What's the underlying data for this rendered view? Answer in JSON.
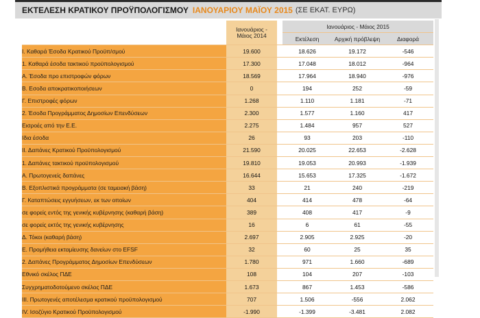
{
  "title": {
    "main": "ΕΚΤΕΛΕΣΗ ΚΡΑΤΙΚΟΥ ΠΡΟΫΠΟΛΟΓΙΣΜΟΥ",
    "period": "ΙΑΝΟΥΑΡΙΟΥ ΜΑΪΟΥ 2015",
    "unit": "(ΣΕ ΕΚΑΤ. ΕΥΡΩ)"
  },
  "headers": {
    "col_2014_line1": "Ιανουάριος -",
    "col_2014_line2": "Μάιος 2014",
    "group_2015": "Ιανουάριος - Μάιος 2015",
    "execution": "Εκτέλεση",
    "initial_forecast": "Αρχική πρόβλεψη",
    "difference": "Διαφορά"
  },
  "rows": [
    {
      "label": "Ι. Καθαρά Έσοδα Κρατικού Προϋπ/σμού",
      "v2014": "19.600",
      "exec": "18.626",
      "forecast": "19.172",
      "diff": "-546"
    },
    {
      "label": "1. Καθαρά έσοδα τακτικού προϋπολογισμού",
      "v2014": "17.300",
      "exec": "17.048",
      "forecast": "18.012",
      "diff": "-964"
    },
    {
      "label": "Α. Έσοδα προ επιστροφών φόρων",
      "v2014": "18.569",
      "exec": "17.964",
      "forecast": "18.940",
      "diff": "-976"
    },
    {
      "label": "Β. Εσοδα αποκρατικοποιήσεων",
      "v2014": "0",
      "exec": "194",
      "forecast": "252",
      "diff": "-59"
    },
    {
      "label": "Γ. Επιστροφές φόρων",
      "v2014": "1.268",
      "exec": "1.110",
      "forecast": "1.181",
      "diff": "-71"
    },
    {
      "label": "2. Έσοδα Προγράμματος Δημοσίων Επενδύσεων",
      "v2014": "2.300",
      "exec": "1.577",
      "forecast": "1.160",
      "diff": "417"
    },
    {
      "label": "Εισροές από την Ε.Ε.",
      "v2014": "2.275",
      "exec": "1.484",
      "forecast": "957",
      "diff": "527"
    },
    {
      "label": "Ιδια έσοδα",
      "v2014": "26",
      "exec": "93",
      "forecast": "203",
      "diff": "-110"
    },
    {
      "label": "ΙΙ. Δαπάνες Κρατικού Προϋπολογισμού",
      "v2014": "21.590",
      "exec": "20.025",
      "forecast": "22.653",
      "diff": "-2.628"
    },
    {
      "label": "1. Δαπάνες τακτικού προϋπολογισμού",
      "v2014": "19.810",
      "exec": "19.053",
      "forecast": "20.993",
      "diff": "-1.939"
    },
    {
      "label": "Α. Πρωτογενείς δαπάνες",
      "v2014": "16.644",
      "exec": "15.653",
      "forecast": "17.325",
      "diff": "-1.672"
    },
    {
      "label": "Β. Εξοπλιστικά προγράμματα (σε ταμειακή βάση)",
      "v2014": "33",
      "exec": "21",
      "forecast": "240",
      "diff": "-219"
    },
    {
      "label": "Γ. Καταπτώσεις εγγυήσεων, εκ των οποίων",
      "v2014": "404",
      "exec": "414",
      "forecast": "478",
      "diff": "-64"
    },
    {
      "label": "σε φορείς εντός της γενικής κυβέρνησης (καθαρή βάση)",
      "v2014": "389",
      "exec": "408",
      "forecast": "417",
      "diff": "-9"
    },
    {
      "label": "σε φορείς εκτός της γενικής κυβέρνησης",
      "v2014": "16",
      "exec": "6",
      "forecast": "61",
      "diff": "-55"
    },
    {
      "label": "Δ. Τόκοι (καθαρή βάση)",
      "v2014": "2.697",
      "exec": "2.905",
      "forecast": "2.925",
      "diff": "-20"
    },
    {
      "label": "Ε. Προμήθεια εκταμίευσης δανείων στο EFSF",
      "v2014": "32",
      "exec": "60",
      "forecast": "25",
      "diff": "35"
    },
    {
      "label": "2. Δαπάνες Προγράμματος Δημοσίων Επενδύσεων",
      "v2014": "1.780",
      "exec": "971",
      "forecast": "1.660",
      "diff": "-689"
    },
    {
      "label": "Εθνικό σκέλος ΠΔΕ",
      "v2014": "108",
      "exec": "104",
      "forecast": "207",
      "diff": "-103"
    },
    {
      "label": "Συγχρηματοδοτούμενο σκέλος ΠΔΕ",
      "v2014": "1.673",
      "exec": "867",
      "forecast": "1.453",
      "diff": "-586"
    },
    {
      "label": "ΙΙΙ. Πρωτογενές αποτέλεσμα κρατικού προϋπολογισμού",
      "v2014": "707",
      "exec": "1.506",
      "forecast": "-556",
      "diff": "2.062"
    },
    {
      "label": "IV. Ισοζύγιο Κρατικού Προϋπολογισμού",
      "v2014": "-1.990",
      "exec": "-1.399",
      "forecast": "-3.481",
      "diff": "2.082"
    }
  ]
}
